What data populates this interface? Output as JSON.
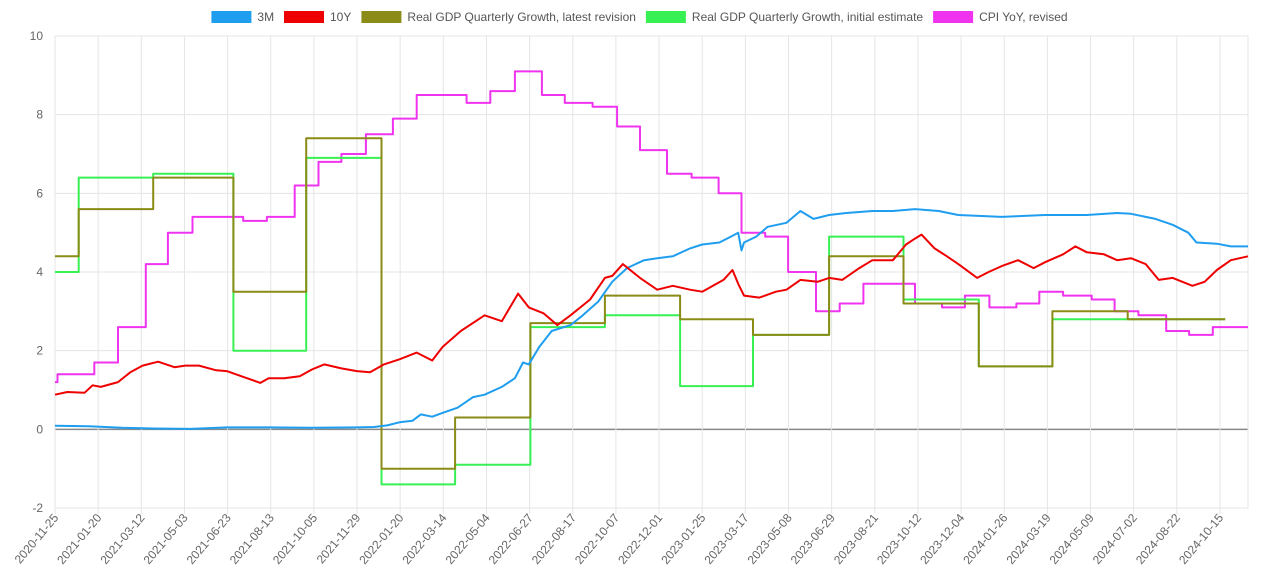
{
  "chart_data": {
    "type": "line",
    "title": "",
    "xlabel": "",
    "ylabel": "",
    "ylim": [
      -2,
      10
    ],
    "y_ticks": [
      -2,
      0,
      2,
      4,
      6,
      8,
      10
    ],
    "grid": true,
    "legend_position": "top-center",
    "x_range": [
      "2020-11-25",
      "2024-11-22"
    ],
    "x_tick_labels": [
      "2020-11-25",
      "2021-01-20",
      "2021-03-12",
      "2021-05-03",
      "2021-06-23",
      "2021-08-13",
      "2021-10-05",
      "2021-11-29",
      "2022-01-20",
      "2022-03-14",
      "2022-05-04",
      "2022-06-27",
      "2022-08-17",
      "2022-10-07",
      "2022-12-01",
      "2023-01-25",
      "2023-03-17",
      "2023-05-08",
      "2023-06-29",
      "2023-08-21",
      "2023-10-12",
      "2023-12-04",
      "2024-01-26",
      "2024-03-19",
      "2024-05-09",
      "2024-07-02",
      "2024-08-22",
      "2024-10-15"
    ],
    "series": [
      {
        "name": "3M",
        "color": "#1f9ef0",
        "points": [
          [
            "2020-11-25",
            0.09
          ],
          [
            "2021-01-05",
            0.08
          ],
          [
            "2021-02-15",
            0.04
          ],
          [
            "2021-03-25",
            0.02
          ],
          [
            "2021-05-10",
            0.01
          ],
          [
            "2021-06-23",
            0.05
          ],
          [
            "2021-08-13",
            0.05
          ],
          [
            "2021-10-05",
            0.04
          ],
          [
            "2021-11-29",
            0.05
          ],
          [
            "2021-12-20",
            0.06
          ],
          [
            "2022-01-05",
            0.1
          ],
          [
            "2022-01-20",
            0.18
          ],
          [
            "2022-02-05",
            0.22
          ],
          [
            "2022-02-15",
            0.38
          ],
          [
            "2022-03-01",
            0.32
          ],
          [
            "2022-03-14",
            0.42
          ],
          [
            "2022-04-01",
            0.55
          ],
          [
            "2022-04-20",
            0.82
          ],
          [
            "2022-05-04",
            0.88
          ],
          [
            "2022-05-25",
            1.08
          ],
          [
            "2022-06-10",
            1.3
          ],
          [
            "2022-06-20",
            1.7
          ],
          [
            "2022-06-27",
            1.65
          ],
          [
            "2022-07-10",
            2.1
          ],
          [
            "2022-07-25",
            2.5
          ],
          [
            "2022-08-17",
            2.65
          ],
          [
            "2022-09-01",
            2.9
          ],
          [
            "2022-09-20",
            3.25
          ],
          [
            "2022-10-07",
            3.75
          ],
          [
            "2022-10-25",
            4.1
          ],
          [
            "2022-11-15",
            4.3
          ],
          [
            "2022-12-01",
            4.35
          ],
          [
            "2022-12-20",
            4.4
          ],
          [
            "2023-01-10",
            4.6
          ],
          [
            "2023-01-25",
            4.7
          ],
          [
            "2023-02-15",
            4.75
          ],
          [
            "2023-03-01",
            4.9
          ],
          [
            "2023-03-10",
            5.0
          ],
          [
            "2023-03-14",
            4.55
          ],
          [
            "2023-03-17",
            4.75
          ],
          [
            "2023-04-01",
            4.9
          ],
          [
            "2023-04-15",
            5.15
          ],
          [
            "2023-05-08",
            5.25
          ],
          [
            "2023-05-25",
            5.55
          ],
          [
            "2023-06-10",
            5.35
          ],
          [
            "2023-06-29",
            5.45
          ],
          [
            "2023-07-20",
            5.5
          ],
          [
            "2023-08-21",
            5.55
          ],
          [
            "2023-09-15",
            5.55
          ],
          [
            "2023-10-12",
            5.6
          ],
          [
            "2023-11-10",
            5.55
          ],
          [
            "2023-12-04",
            5.45
          ],
          [
            "2024-01-26",
            5.4
          ],
          [
            "2024-03-19",
            5.45
          ],
          [
            "2024-05-09",
            5.45
          ],
          [
            "2024-06-15",
            5.5
          ],
          [
            "2024-07-02",
            5.48
          ],
          [
            "2024-08-01",
            5.35
          ],
          [
            "2024-08-22",
            5.2
          ],
          [
            "2024-09-10",
            5.0
          ],
          [
            "2024-09-20",
            4.75
          ],
          [
            "2024-10-15",
            4.72
          ],
          [
            "2024-11-01",
            4.65
          ],
          [
            "2024-11-22",
            4.65
          ]
        ]
      },
      {
        "name": "10Y",
        "color": "#ef0000",
        "points": [
          [
            "2020-11-25",
            0.88
          ],
          [
            "2020-12-10",
            0.95
          ],
          [
            "2020-12-31",
            0.93
          ],
          [
            "2021-01-10",
            1.12
          ],
          [
            "2021-01-20",
            1.08
          ],
          [
            "2021-02-10",
            1.2
          ],
          [
            "2021-02-25",
            1.45
          ],
          [
            "2021-03-12",
            1.62
          ],
          [
            "2021-03-31",
            1.72
          ],
          [
            "2021-04-20",
            1.58
          ],
          [
            "2021-05-03",
            1.62
          ],
          [
            "2021-05-20",
            1.62
          ],
          [
            "2021-06-10",
            1.5
          ],
          [
            "2021-06-23",
            1.48
          ],
          [
            "2021-07-15",
            1.32
          ],
          [
            "2021-08-03",
            1.18
          ],
          [
            "2021-08-13",
            1.3
          ],
          [
            "2021-09-01",
            1.3
          ],
          [
            "2021-09-20",
            1.35
          ],
          [
            "2021-10-05",
            1.52
          ],
          [
            "2021-10-20",
            1.65
          ],
          [
            "2021-11-10",
            1.55
          ],
          [
            "2021-11-29",
            1.48
          ],
          [
            "2021-12-15",
            1.45
          ],
          [
            "2022-01-01",
            1.65
          ],
          [
            "2022-01-20",
            1.78
          ],
          [
            "2022-02-10",
            1.95
          ],
          [
            "2022-03-01",
            1.75
          ],
          [
            "2022-03-14",
            2.1
          ],
          [
            "2022-04-05",
            2.5
          ],
          [
            "2022-05-04",
            2.9
          ],
          [
            "2022-05-25",
            2.75
          ],
          [
            "2022-06-14",
            3.45
          ],
          [
            "2022-06-27",
            3.1
          ],
          [
            "2022-07-15",
            2.95
          ],
          [
            "2022-08-01",
            2.65
          ],
          [
            "2022-08-17",
            2.9
          ],
          [
            "2022-09-10",
            3.3
          ],
          [
            "2022-09-28",
            3.85
          ],
          [
            "2022-10-07",
            3.9
          ],
          [
            "2022-10-20",
            4.2
          ],
          [
            "2022-11-10",
            3.85
          ],
          [
            "2022-12-01",
            3.55
          ],
          [
            "2022-12-20",
            3.65
          ],
          [
            "2023-01-10",
            3.55
          ],
          [
            "2023-01-25",
            3.5
          ],
          [
            "2023-02-20",
            3.8
          ],
          [
            "2023-03-03",
            4.05
          ],
          [
            "2023-03-10",
            3.7
          ],
          [
            "2023-03-17",
            3.4
          ],
          [
            "2023-04-05",
            3.35
          ],
          [
            "2023-04-25",
            3.5
          ],
          [
            "2023-05-08",
            3.55
          ],
          [
            "2023-05-25",
            3.8
          ],
          [
            "2023-06-15",
            3.75
          ],
          [
            "2023-06-29",
            3.85
          ],
          [
            "2023-07-15",
            3.8
          ],
          [
            "2023-08-05",
            4.1
          ],
          [
            "2023-08-21",
            4.3
          ],
          [
            "2023-09-15",
            4.3
          ],
          [
            "2023-10-01",
            4.7
          ],
          [
            "2023-10-12",
            4.85
          ],
          [
            "2023-10-20",
            4.95
          ],
          [
            "2023-11-05",
            4.6
          ],
          [
            "2023-11-20",
            4.4
          ],
          [
            "2023-12-04",
            4.2
          ],
          [
            "2023-12-27",
            3.85
          ],
          [
            "2024-01-10",
            4.0
          ],
          [
            "2024-01-26",
            4.15
          ],
          [
            "2024-02-15",
            4.3
          ],
          [
            "2024-03-05",
            4.1
          ],
          [
            "2024-03-19",
            4.25
          ],
          [
            "2024-04-10",
            4.45
          ],
          [
            "2024-04-25",
            4.65
          ],
          [
            "2024-05-09",
            4.5
          ],
          [
            "2024-05-30",
            4.45
          ],
          [
            "2024-06-15",
            4.3
          ],
          [
            "2024-07-02",
            4.35
          ],
          [
            "2024-07-20",
            4.2
          ],
          [
            "2024-08-05",
            3.8
          ],
          [
            "2024-08-22",
            3.85
          ],
          [
            "2024-09-15",
            3.65
          ],
          [
            "2024-09-30",
            3.75
          ],
          [
            "2024-10-15",
            4.05
          ],
          [
            "2024-11-01",
            4.3
          ],
          [
            "2024-11-22",
            4.4
          ]
        ]
      },
      {
        "name": "Real GDP Quarterly Growth, latest revision",
        "color": "#8b8b17",
        "step": true,
        "points": [
          [
            "2020-11-25",
            4.4
          ],
          [
            "2020-12-24",
            5.6
          ],
          [
            "2021-03-25",
            6.4
          ],
          [
            "2021-07-01",
            3.5
          ],
          [
            "2021-09-28",
            7.4
          ],
          [
            "2021-12-29",
            -1.0
          ],
          [
            "2022-03-29",
            0.3
          ],
          [
            "2022-06-29",
            2.7
          ],
          [
            "2022-09-28",
            3.4
          ],
          [
            "2022-12-29",
            2.8
          ],
          [
            "2023-03-28",
            2.4
          ],
          [
            "2023-06-29",
            4.4
          ],
          [
            "2023-09-28",
            3.2
          ],
          [
            "2023-12-29",
            1.6
          ],
          [
            "2024-03-28",
            3.0
          ],
          [
            "2024-06-28",
            2.8
          ],
          [
            "2024-09-26",
            2.8
          ]
        ]
      },
      {
        "name": "Real GDP Quarterly Growth, initial estimate",
        "color": "#37f054",
        "step": true,
        "points": [
          [
            "2020-11-25",
            4.0
          ],
          [
            "2020-12-24",
            6.4
          ],
          [
            "2021-03-25",
            6.5
          ],
          [
            "2021-07-01",
            2.0
          ],
          [
            "2021-09-28",
            6.9
          ],
          [
            "2021-12-29",
            -1.4
          ],
          [
            "2022-03-29",
            -0.9
          ],
          [
            "2022-06-29",
            2.6
          ],
          [
            "2022-09-28",
            2.9
          ],
          [
            "2022-12-29",
            1.1
          ],
          [
            "2023-03-28",
            2.4
          ],
          [
            "2023-06-29",
            4.9
          ],
          [
            "2023-09-28",
            3.3
          ],
          [
            "2023-12-29",
            1.6
          ],
          [
            "2024-03-28",
            2.8
          ],
          [
            "2024-06-28",
            2.8
          ],
          [
            "2024-09-26",
            2.8
          ]
        ]
      },
      {
        "name": "CPI YoY, revised",
        "color": "#ef33ef",
        "step": true,
        "points": [
          [
            "2020-11-25",
            1.2
          ],
          [
            "2020-11-28",
            1.4
          ],
          [
            "2021-01-12",
            1.7
          ],
          [
            "2021-02-10",
            2.6
          ],
          [
            "2021-03-16",
            4.2
          ],
          [
            "2021-04-12",
            5.0
          ],
          [
            "2021-05-12",
            5.4
          ],
          [
            "2021-07-13",
            5.3
          ],
          [
            "2021-08-11",
            5.4
          ],
          [
            "2021-09-14",
            6.2
          ],
          [
            "2021-10-13",
            6.8
          ],
          [
            "2021-11-10",
            7.0
          ],
          [
            "2021-12-10",
            7.5
          ],
          [
            "2022-01-12",
            7.9
          ],
          [
            "2022-02-10",
            8.5
          ],
          [
            "2022-04-12",
            8.3
          ],
          [
            "2022-05-11",
            8.6
          ],
          [
            "2022-06-10",
            9.1
          ],
          [
            "2022-07-13",
            8.5
          ],
          [
            "2022-08-10",
            8.3
          ],
          [
            "2022-09-13",
            8.2
          ],
          [
            "2022-10-13",
            7.7
          ],
          [
            "2022-11-10",
            7.1
          ],
          [
            "2022-12-13",
            6.5
          ],
          [
            "2023-01-12",
            6.4
          ],
          [
            "2023-02-14",
            6.0
          ],
          [
            "2023-03-14",
            5.0
          ],
          [
            "2023-04-12",
            4.9
          ],
          [
            "2023-05-10",
            4.0
          ],
          [
            "2023-06-13",
            3.0
          ],
          [
            "2023-07-12",
            3.2
          ],
          [
            "2023-08-10",
            3.7
          ],
          [
            "2023-10-12",
            3.2
          ],
          [
            "2023-11-14",
            3.1
          ],
          [
            "2023-12-12",
            3.4
          ],
          [
            "2024-01-11",
            3.1
          ],
          [
            "2024-02-13",
            3.2
          ],
          [
            "2024-03-12",
            3.5
          ],
          [
            "2024-04-10",
            3.4
          ],
          [
            "2024-05-15",
            3.3
          ],
          [
            "2024-06-12",
            3.0
          ],
          [
            "2024-07-11",
            2.9
          ],
          [
            "2024-08-14",
            2.5
          ],
          [
            "2024-09-11",
            2.4
          ],
          [
            "2024-10-10",
            2.6
          ],
          [
            "2024-11-01",
            2.6
          ]
        ]
      }
    ]
  }
}
